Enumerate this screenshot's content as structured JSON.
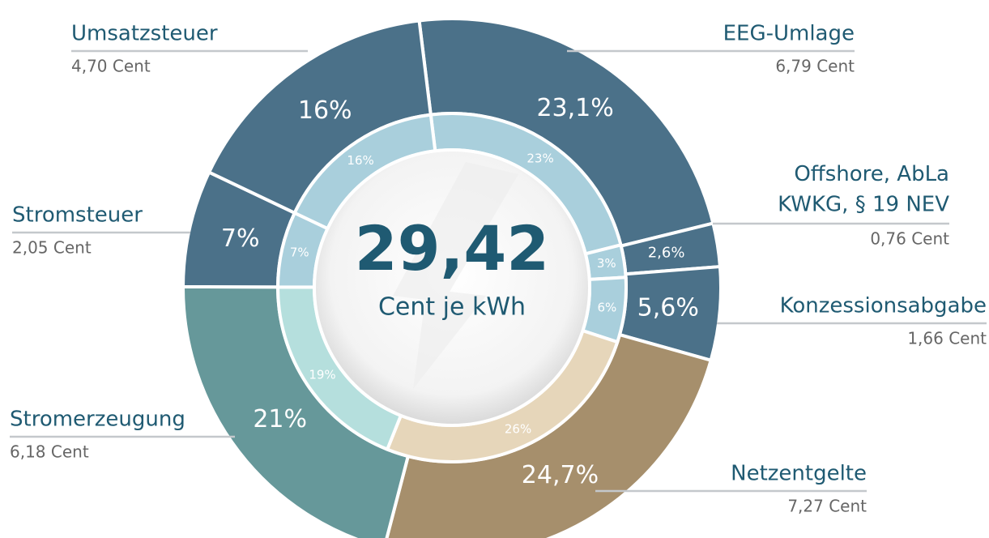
{
  "chart_data": {
    "type": "donut",
    "categories": [
      "EEG-Umlage",
      "Offshore, AbLa\nKWKG, § 19 NEV",
      "Konzessionsabgabe",
      "Netzentgelte",
      "Stromerzeugung",
      "Stromsteuer",
      "Umsatzsteuer"
    ],
    "amounts": [
      6.79,
      0.76,
      1.66,
      7.27,
      6.18,
      2.05,
      4.7
    ],
    "amount_labels": [
      "6,79 Cent",
      "0,76 Cent",
      "1,66 Cent",
      "7,27 Cent",
      "6,18 Cent",
      "2,05 Cent",
      "4,70 Cent"
    ],
    "series": [
      {
        "values": [
          23.1,
          2.6,
          5.6,
          24.7,
          21,
          7,
          16
        ],
        "value_labels": [
          "23,1%",
          "2,6%",
          "5,6%",
          "24,7%",
          "21%",
          "7%",
          "16%"
        ],
        "colors": [
          "#4b7189",
          "#4b7189",
          "#4b7189",
          "#a68f6c",
          "#66989a",
          "#4b7189",
          "#4b7189"
        ]
      },
      {
        "values": [
          23,
          3,
          6,
          26,
          19,
          7,
          16
        ],
        "value_labels": [
          "23%",
          "3%",
          "6%",
          "26%",
          "19%",
          "7%",
          "16%"
        ],
        "colors": [
          "#a9cfdc",
          "#a9cfdc",
          "#a9cfdc",
          "#e6d6ba",
          "#b5dfdd",
          "#a9cfdc",
          "#a9cfdc"
        ]
      }
    ],
    "center_value": 29.42,
    "center_value_label": "29,42",
    "center_text": "Cent je kWh"
  }
}
